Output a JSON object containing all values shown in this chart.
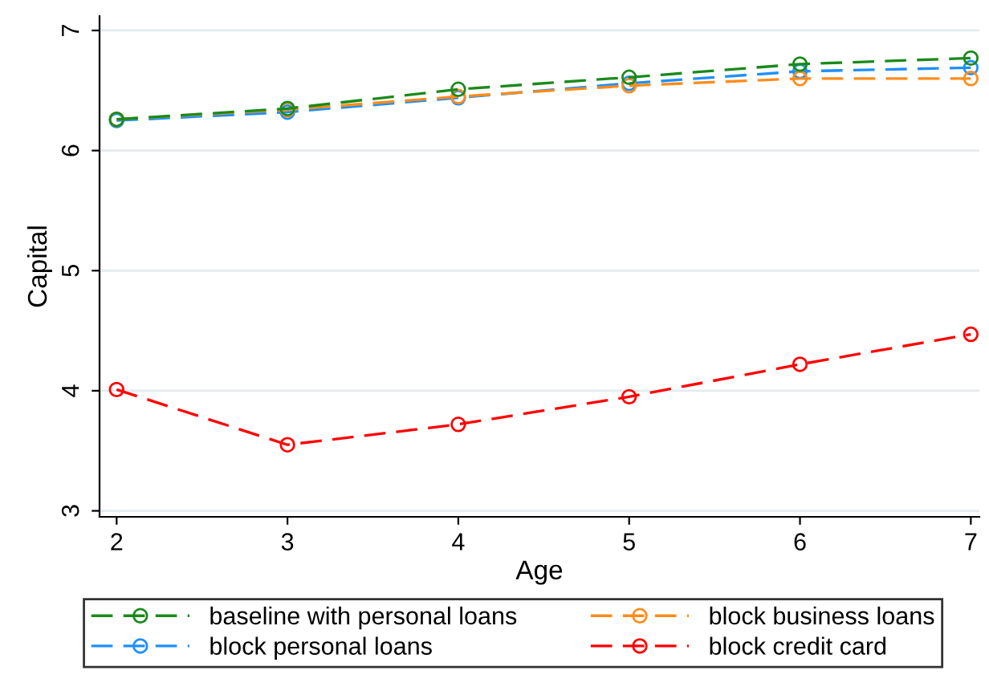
{
  "chart_data": {
    "type": "line",
    "xlabel": "Age",
    "ylabel": "Capital",
    "x": [
      2,
      3,
      4,
      5,
      6,
      7
    ],
    "series": [
      {
        "name": "baseline with personal loans",
        "color": "#1a8a1a",
        "values": [
          6.26,
          6.35,
          6.51,
          6.61,
          6.72,
          6.77
        ]
      },
      {
        "name": "block business loans",
        "color": "#ff8c1a",
        "values": [
          6.26,
          6.34,
          6.45,
          6.54,
          6.6,
          6.6
        ]
      },
      {
        "name": "block personal loans",
        "color": "#1e90ff",
        "values": [
          6.25,
          6.32,
          6.44,
          6.56,
          6.66,
          6.69
        ]
      },
      {
        "name": "block credit card",
        "color": "#ff0000",
        "values": [
          4.01,
          3.55,
          3.72,
          3.95,
          4.22,
          4.47
        ]
      }
    ],
    "xlim": [
      1.9,
      7.05
    ],
    "ylim": [
      2.95,
      7.12
    ],
    "xticks": [
      2,
      3,
      4,
      5,
      6,
      7
    ],
    "yticks": [
      3,
      4,
      5,
      6,
      7
    ],
    "grid": "y",
    "legend": "bottom",
    "marker": "circle",
    "line_style": "dashed"
  }
}
